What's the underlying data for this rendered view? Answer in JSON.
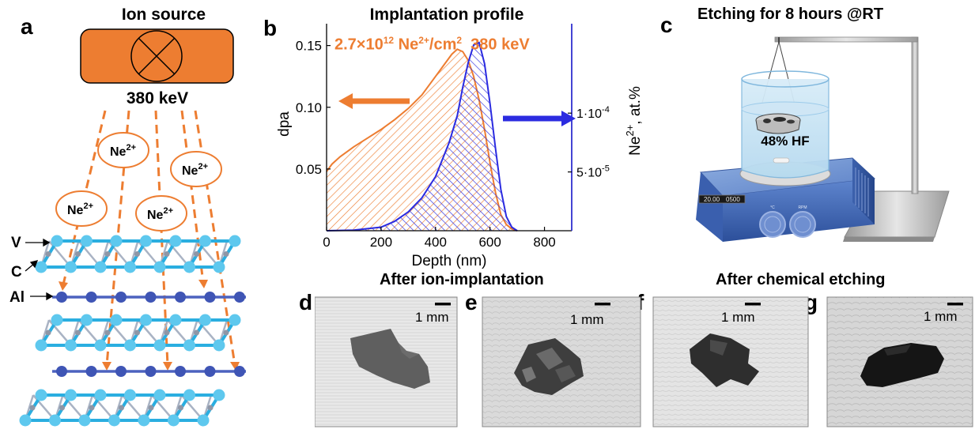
{
  "figure": {
    "panel_labels": {
      "a": "a",
      "b": "b",
      "c": "c",
      "d": "d",
      "e": "e",
      "f": "f",
      "g": "g"
    }
  },
  "panel_a": {
    "ion_source_label": "Ion source",
    "energy_label": "380 keV",
    "ion_symbol": "Ne",
    "ion_charge": "2+",
    "layer_labels": {
      "v": "V",
      "c": "C",
      "al": "Al"
    },
    "colors": {
      "source": "#ed7d31",
      "ion_outline": "#ed7d31",
      "beam": "#ed7d31",
      "atom_v": "#5ec8ee",
      "atom_al": "#3f55b5",
      "bond": "#2aaee0"
    }
  },
  "panel_b": {
    "title": "Implantation profile",
    "dose_mantissa": "2.7×10",
    "dose_exponent": "12",
    "dose_species": " Ne",
    "dose_charge": "2+",
    "dose_unit": "/cm",
    "dose_unit_exp": "2",
    "dose_energy": "  380 keV",
    "colors": {
      "dpa": "#ed7d31",
      "ne": "#2b2be0",
      "frame_right": "#3030d0"
    }
  },
  "chart_data": {
    "type": "area",
    "title": "Implantation profile",
    "xlabel": "Depth (nm)",
    "ylabel": "dpa",
    "ylabel_right": "Ne2+, at.%",
    "xlim": [
      0,
      900
    ],
    "ylim": [
      0,
      0.16
    ],
    "ylim_right": [
      0,
      0.000168
    ],
    "x_ticks": [
      0,
      200,
      400,
      600,
      800
    ],
    "x_tick_labels": [
      "0",
      "200",
      "400",
      "600",
      "800"
    ],
    "y_ticks": [
      0.05,
      0.1,
      0.15
    ],
    "y_tick_labels": [
      "0.05",
      "0.10",
      "0.15"
    ],
    "y_ticks_right": [
      5e-05,
      0.0001
    ],
    "y_tick_labels_right": [
      "5·10",
      "1·10"
    ],
    "y_tick_exps_right": [
      "-5",
      "-4"
    ],
    "series": [
      {
        "axis": "left",
        "color": "#ed7d31",
        "x": [
          0,
          20,
          50,
          100,
          150,
          200,
          250,
          300,
          350,
          400,
          430,
          460,
          480,
          500,
          520,
          540,
          560,
          580,
          600,
          620,
          640,
          660,
          680,
          700
        ],
        "y": [
          0.048,
          0.054,
          0.06,
          0.068,
          0.075,
          0.082,
          0.09,
          0.099,
          0.11,
          0.125,
          0.134,
          0.143,
          0.147,
          0.145,
          0.138,
          0.125,
          0.106,
          0.082,
          0.055,
          0.031,
          0.013,
          0.005,
          0.0015,
          0
        ]
      },
      {
        "axis": "right",
        "color": "#2b2be0",
        "x": [
          0,
          100,
          200,
          250,
          300,
          350,
          400,
          450,
          480,
          500,
          520,
          540,
          560,
          580,
          600,
          620,
          640,
          660,
          680,
          700
        ],
        "y": [
          0,
          5e-07,
          3e-06,
          8e-06,
          1.6e-05,
          2.8e-05,
          4.6e-05,
          7.5e-05,
          9.8e-05,
          0.000122,
          0.000143,
          0.000158,
          0.00016,
          0.000142,
          0.000108,
          7e-05,
          3.5e-05,
          1.2e-05,
          3e-06,
          0
        ]
      }
    ]
  },
  "panel_c": {
    "title": "Etching for 8 hours @RT",
    "solution_label": "48% HF",
    "display_left": "20.00",
    "display_right": "0500",
    "knob_left": "°C",
    "knob_right": "RPM"
  },
  "photos": {
    "header_left": "After ion-implantation",
    "header_right": "After chemical etching",
    "scale_label": "1 mm"
  }
}
